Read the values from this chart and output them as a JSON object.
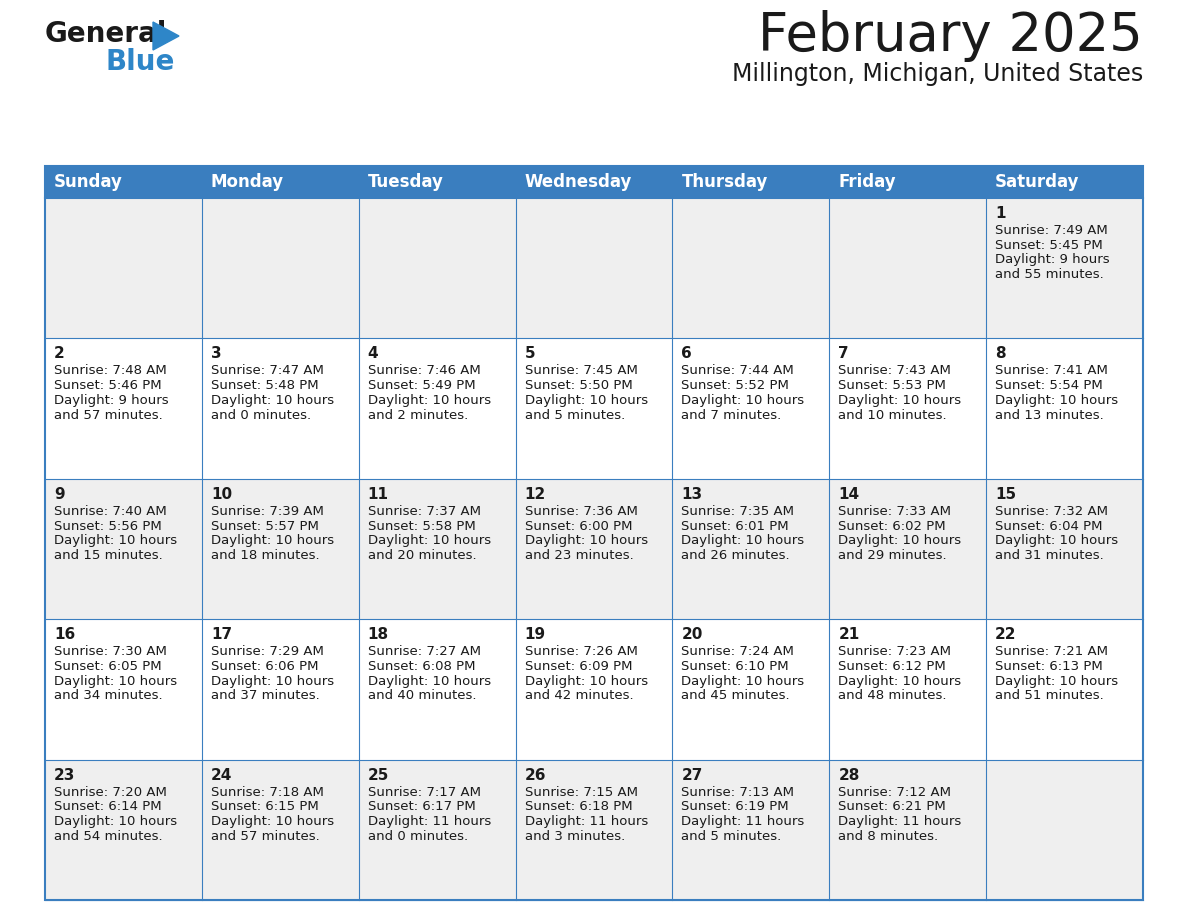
{
  "title": "February 2025",
  "subtitle": "Millington, Michigan, United States",
  "header_color": "#3a7ebf",
  "header_text_color": "#ffffff",
  "row_bg_odd": "#efefef",
  "row_bg_even": "#ffffff",
  "day_headers": [
    "Sunday",
    "Monday",
    "Tuesday",
    "Wednesday",
    "Thursday",
    "Friday",
    "Saturday"
  ],
  "background_color": "#ffffff",
  "border_color": "#3a7ebf",
  "text_color": "#1a1a1a",
  "days": [
    {
      "day": 1,
      "col": 6,
      "row": 0,
      "sunrise": "7:49 AM",
      "sunset": "5:45 PM",
      "daylight": "9 hours and 55 minutes."
    },
    {
      "day": 2,
      "col": 0,
      "row": 1,
      "sunrise": "7:48 AM",
      "sunset": "5:46 PM",
      "daylight": "9 hours and 57 minutes."
    },
    {
      "day": 3,
      "col": 1,
      "row": 1,
      "sunrise": "7:47 AM",
      "sunset": "5:48 PM",
      "daylight": "10 hours and 0 minutes."
    },
    {
      "day": 4,
      "col": 2,
      "row": 1,
      "sunrise": "7:46 AM",
      "sunset": "5:49 PM",
      "daylight": "10 hours and 2 minutes."
    },
    {
      "day": 5,
      "col": 3,
      "row": 1,
      "sunrise": "7:45 AM",
      "sunset": "5:50 PM",
      "daylight": "10 hours and 5 minutes."
    },
    {
      "day": 6,
      "col": 4,
      "row": 1,
      "sunrise": "7:44 AM",
      "sunset": "5:52 PM",
      "daylight": "10 hours and 7 minutes."
    },
    {
      "day": 7,
      "col": 5,
      "row": 1,
      "sunrise": "7:43 AM",
      "sunset": "5:53 PM",
      "daylight": "10 hours and 10 minutes."
    },
    {
      "day": 8,
      "col": 6,
      "row": 1,
      "sunrise": "7:41 AM",
      "sunset": "5:54 PM",
      "daylight": "10 hours and 13 minutes."
    },
    {
      "day": 9,
      "col": 0,
      "row": 2,
      "sunrise": "7:40 AM",
      "sunset": "5:56 PM",
      "daylight": "10 hours and 15 minutes."
    },
    {
      "day": 10,
      "col": 1,
      "row": 2,
      "sunrise": "7:39 AM",
      "sunset": "5:57 PM",
      "daylight": "10 hours and 18 minutes."
    },
    {
      "day": 11,
      "col": 2,
      "row": 2,
      "sunrise": "7:37 AM",
      "sunset": "5:58 PM",
      "daylight": "10 hours and 20 minutes."
    },
    {
      "day": 12,
      "col": 3,
      "row": 2,
      "sunrise": "7:36 AM",
      "sunset": "6:00 PM",
      "daylight": "10 hours and 23 minutes."
    },
    {
      "day": 13,
      "col": 4,
      "row": 2,
      "sunrise": "7:35 AM",
      "sunset": "6:01 PM",
      "daylight": "10 hours and 26 minutes."
    },
    {
      "day": 14,
      "col": 5,
      "row": 2,
      "sunrise": "7:33 AM",
      "sunset": "6:02 PM",
      "daylight": "10 hours and 29 minutes."
    },
    {
      "day": 15,
      "col": 6,
      "row": 2,
      "sunrise": "7:32 AM",
      "sunset": "6:04 PM",
      "daylight": "10 hours and 31 minutes."
    },
    {
      "day": 16,
      "col": 0,
      "row": 3,
      "sunrise": "7:30 AM",
      "sunset": "6:05 PM",
      "daylight": "10 hours and 34 minutes."
    },
    {
      "day": 17,
      "col": 1,
      "row": 3,
      "sunrise": "7:29 AM",
      "sunset": "6:06 PM",
      "daylight": "10 hours and 37 minutes."
    },
    {
      "day": 18,
      "col": 2,
      "row": 3,
      "sunrise": "7:27 AM",
      "sunset": "6:08 PM",
      "daylight": "10 hours and 40 minutes."
    },
    {
      "day": 19,
      "col": 3,
      "row": 3,
      "sunrise": "7:26 AM",
      "sunset": "6:09 PM",
      "daylight": "10 hours and 42 minutes."
    },
    {
      "day": 20,
      "col": 4,
      "row": 3,
      "sunrise": "7:24 AM",
      "sunset": "6:10 PM",
      "daylight": "10 hours and 45 minutes."
    },
    {
      "day": 21,
      "col": 5,
      "row": 3,
      "sunrise": "7:23 AM",
      "sunset": "6:12 PM",
      "daylight": "10 hours and 48 minutes."
    },
    {
      "day": 22,
      "col": 6,
      "row": 3,
      "sunrise": "7:21 AM",
      "sunset": "6:13 PM",
      "daylight": "10 hours and 51 minutes."
    },
    {
      "day": 23,
      "col": 0,
      "row": 4,
      "sunrise": "7:20 AM",
      "sunset": "6:14 PM",
      "daylight": "10 hours and 54 minutes."
    },
    {
      "day": 24,
      "col": 1,
      "row": 4,
      "sunrise": "7:18 AM",
      "sunset": "6:15 PM",
      "daylight": "10 hours and 57 minutes."
    },
    {
      "day": 25,
      "col": 2,
      "row": 4,
      "sunrise": "7:17 AM",
      "sunset": "6:17 PM",
      "daylight": "11 hours and 0 minutes."
    },
    {
      "day": 26,
      "col": 3,
      "row": 4,
      "sunrise": "7:15 AM",
      "sunset": "6:18 PM",
      "daylight": "11 hours and 3 minutes."
    },
    {
      "day": 27,
      "col": 4,
      "row": 4,
      "sunrise": "7:13 AM",
      "sunset": "6:19 PM",
      "daylight": "11 hours and 5 minutes."
    },
    {
      "day": 28,
      "col": 5,
      "row": 4,
      "sunrise": "7:12 AM",
      "sunset": "6:21 PM",
      "daylight": "11 hours and 8 minutes."
    }
  ],
  "num_rows": 5,
  "title_fontsize": 38,
  "subtitle_fontsize": 17,
  "header_fontsize": 12,
  "day_number_fontsize": 11,
  "cell_text_fontsize": 9.5
}
